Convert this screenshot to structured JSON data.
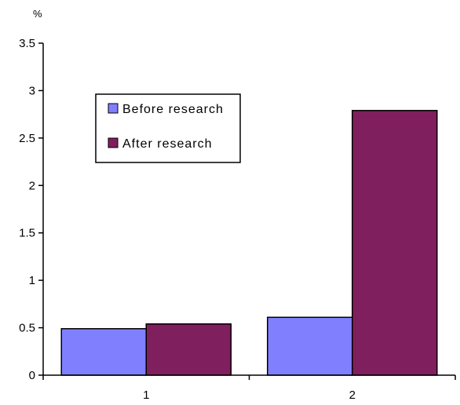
{
  "chart_data": {
    "type": "bar",
    "unit_label": "%",
    "categories": [
      "1",
      "2"
    ],
    "series": [
      {
        "name": "Before research",
        "values": [
          0.49,
          0.61
        ],
        "color": "#8080ff"
      },
      {
        "name": "After research",
        "values": [
          0.54,
          2.79
        ],
        "color": "#801f5e"
      }
    ],
    "ylim": [
      0,
      3.5
    ],
    "yticks": [
      "0",
      "0.5",
      "1",
      "1.5",
      "2",
      "2.5",
      "3",
      "3.5"
    ],
    "grid": false,
    "legend_position": "top-left"
  }
}
